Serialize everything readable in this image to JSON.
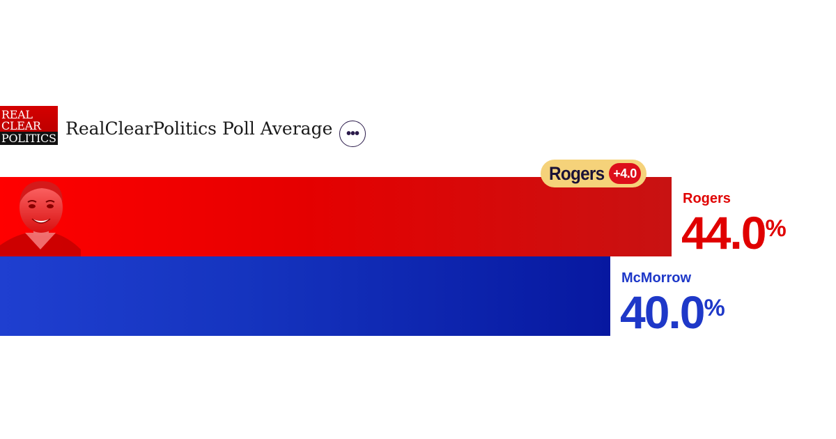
{
  "header": {
    "logo_lines": [
      "REAL",
      "CLEAR",
      "POLITICS"
    ],
    "title": "RealClearPolitics Poll Average",
    "more_label": "•••"
  },
  "leader": {
    "name": "Rogers",
    "margin": "+4.0"
  },
  "candidates": [
    {
      "name": "Rogers",
      "value_text": "44.0",
      "pct": "%",
      "color": "#e00000"
    },
    {
      "name": "McMorrow",
      "value_text": "40.0",
      "pct": "%",
      "color": "#1e38c8"
    }
  ],
  "chart_data": {
    "type": "bar",
    "orientation": "horizontal",
    "title": "RealClearPolitics Poll Average",
    "categories": [
      "Rogers",
      "McMorrow"
    ],
    "values": [
      44.0,
      40.0
    ],
    "unit": "%",
    "colors": [
      "#e00000",
      "#1e38c8"
    ],
    "annotation": "Rogers +4.0",
    "legend": "none",
    "grid": false
  }
}
